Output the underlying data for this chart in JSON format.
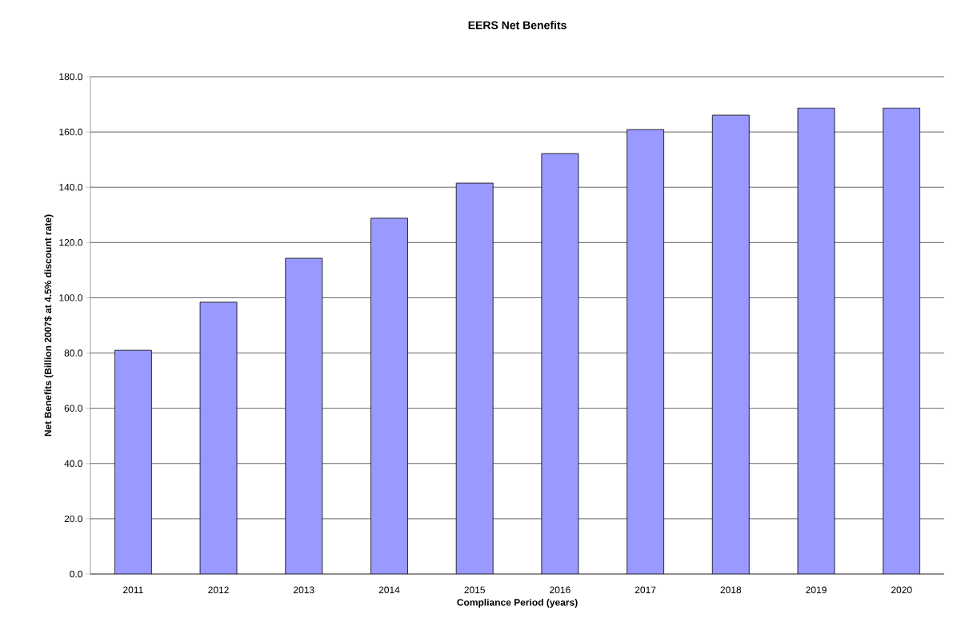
{
  "chart_data": {
    "type": "bar",
    "title": "EERS Net Benefits",
    "xlabel": "Compliance Period (years)",
    "ylabel": "Net Benefits (Billion 2007$ at 4.5% discount rate)",
    "categories": [
      "2011",
      "2012",
      "2013",
      "2014",
      "2015",
      "2016",
      "2017",
      "2018",
      "2019",
      "2020"
    ],
    "values": [
      81.0,
      98.4,
      114.3,
      128.8,
      141.5,
      152.2,
      160.9,
      166.1,
      168.7,
      168.7
    ],
    "color": "#9999ff",
    "ylim": [
      0,
      180
    ],
    "yticks": [
      {
        "value": 0,
        "label": "0.0"
      },
      {
        "value": 20,
        "label": "20.0"
      },
      {
        "value": 40,
        "label": "40.0"
      },
      {
        "value": 60,
        "label": "60.0"
      },
      {
        "value": 80,
        "label": "80.0"
      },
      {
        "value": 100,
        "label": "100.0"
      },
      {
        "value": 120,
        "label": "120.0"
      },
      {
        "value": 140,
        "label": "140.0"
      },
      {
        "value": 160,
        "label": "160.0"
      },
      {
        "value": 180,
        "label": "180.0"
      }
    ],
    "grid": "y"
  }
}
